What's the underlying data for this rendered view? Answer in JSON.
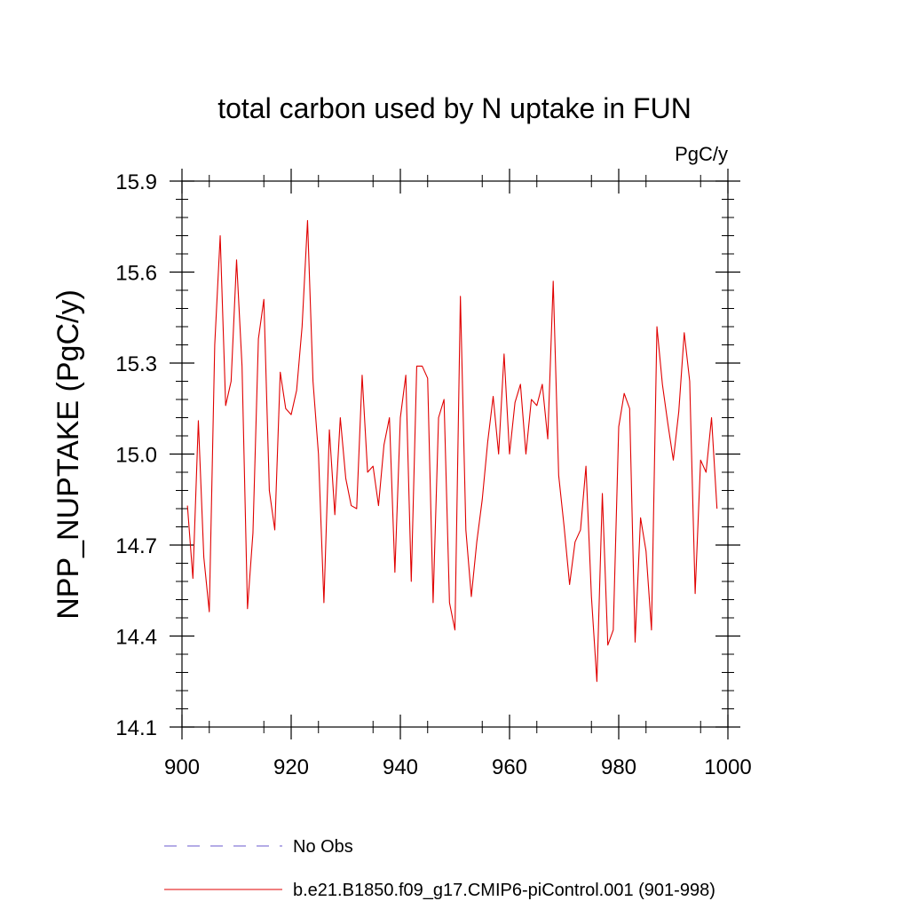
{
  "chart_data": {
    "type": "line",
    "title": "total carbon used by N uptake in FUN",
    "units_label": "PgC/y",
    "ylabel": "NPP_NUPTAKE  (PgC/y)",
    "xlabel": "",
    "xlim": [
      900,
      1000
    ],
    "ylim": [
      14.1,
      15.9
    ],
    "xticks": [
      900,
      920,
      940,
      960,
      980,
      1000
    ],
    "xtick_labels": [
      "900",
      "920",
      "940",
      "960",
      "980",
      "1000"
    ],
    "yticks": [
      14.1,
      14.4,
      14.7,
      15.0,
      15.3,
      15.6,
      15.9
    ],
    "ytick_labels": [
      "14.1",
      "14.4",
      "14.7",
      "15.0",
      "15.3",
      "15.6",
      "15.9"
    ],
    "legend": [
      {
        "label": "No Obs",
        "color": "#6a5acd",
        "style": "dashed"
      },
      {
        "label": "b.e21.B1850.f09_g17.CMIP6-piControl.001 (901-998)",
        "color": "#e00000",
        "style": "solid"
      }
    ],
    "series": [
      {
        "name": "b.e21.B1850.f09_g17.CMIP6-piControl.001 (901-998)",
        "color": "#e00000",
        "x": [
          901,
          902,
          903,
          904,
          905,
          906,
          907,
          908,
          909,
          910,
          911,
          912,
          913,
          914,
          915,
          916,
          917,
          918,
          919,
          920,
          921,
          922,
          923,
          924,
          925,
          926,
          927,
          928,
          929,
          930,
          931,
          932,
          933,
          934,
          935,
          936,
          937,
          938,
          939,
          940,
          941,
          942,
          943,
          944,
          945,
          946,
          947,
          948,
          949,
          950,
          951,
          952,
          953,
          954,
          955,
          956,
          957,
          958,
          959,
          960,
          961,
          962,
          963,
          964,
          965,
          966,
          967,
          968,
          969,
          970,
          971,
          972,
          973,
          974,
          975,
          976,
          977,
          978,
          979,
          980,
          981,
          982,
          983,
          984,
          985,
          986,
          987,
          988,
          989,
          990,
          991,
          992,
          993,
          994,
          995,
          996,
          997,
          998
        ],
        "values": [
          14.83,
          14.59,
          15.11,
          14.66,
          14.48,
          15.36,
          15.72,
          15.16,
          15.24,
          15.64,
          15.29,
          14.49,
          14.74,
          15.38,
          15.51,
          14.88,
          14.75,
          15.27,
          15.15,
          15.13,
          15.21,
          15.42,
          15.77,
          15.24,
          15.0,
          14.51,
          15.08,
          14.8,
          15.12,
          14.92,
          14.83,
          14.82,
          15.26,
          14.94,
          14.96,
          14.83,
          15.03,
          15.12,
          14.61,
          15.12,
          15.26,
          14.58,
          15.29,
          15.29,
          15.25,
          14.51,
          15.12,
          15.18,
          14.51,
          14.42,
          15.52,
          14.75,
          14.53,
          14.71,
          14.85,
          15.04,
          15.19,
          15.0,
          15.33,
          15.0,
          15.17,
          15.23,
          15.0,
          15.18,
          15.16,
          15.23,
          15.05,
          15.57,
          14.93,
          14.76,
          14.57,
          14.71,
          14.75,
          14.96,
          14.53,
          14.25,
          14.87,
          14.37,
          14.42,
          15.09,
          15.2,
          15.15,
          14.38,
          14.79,
          14.68,
          14.42,
          15.42,
          15.23,
          15.1,
          14.98,
          15.14,
          15.4,
          15.24,
          14.54,
          14.98,
          14.94,
          15.12,
          14.82
        ]
      }
    ]
  }
}
